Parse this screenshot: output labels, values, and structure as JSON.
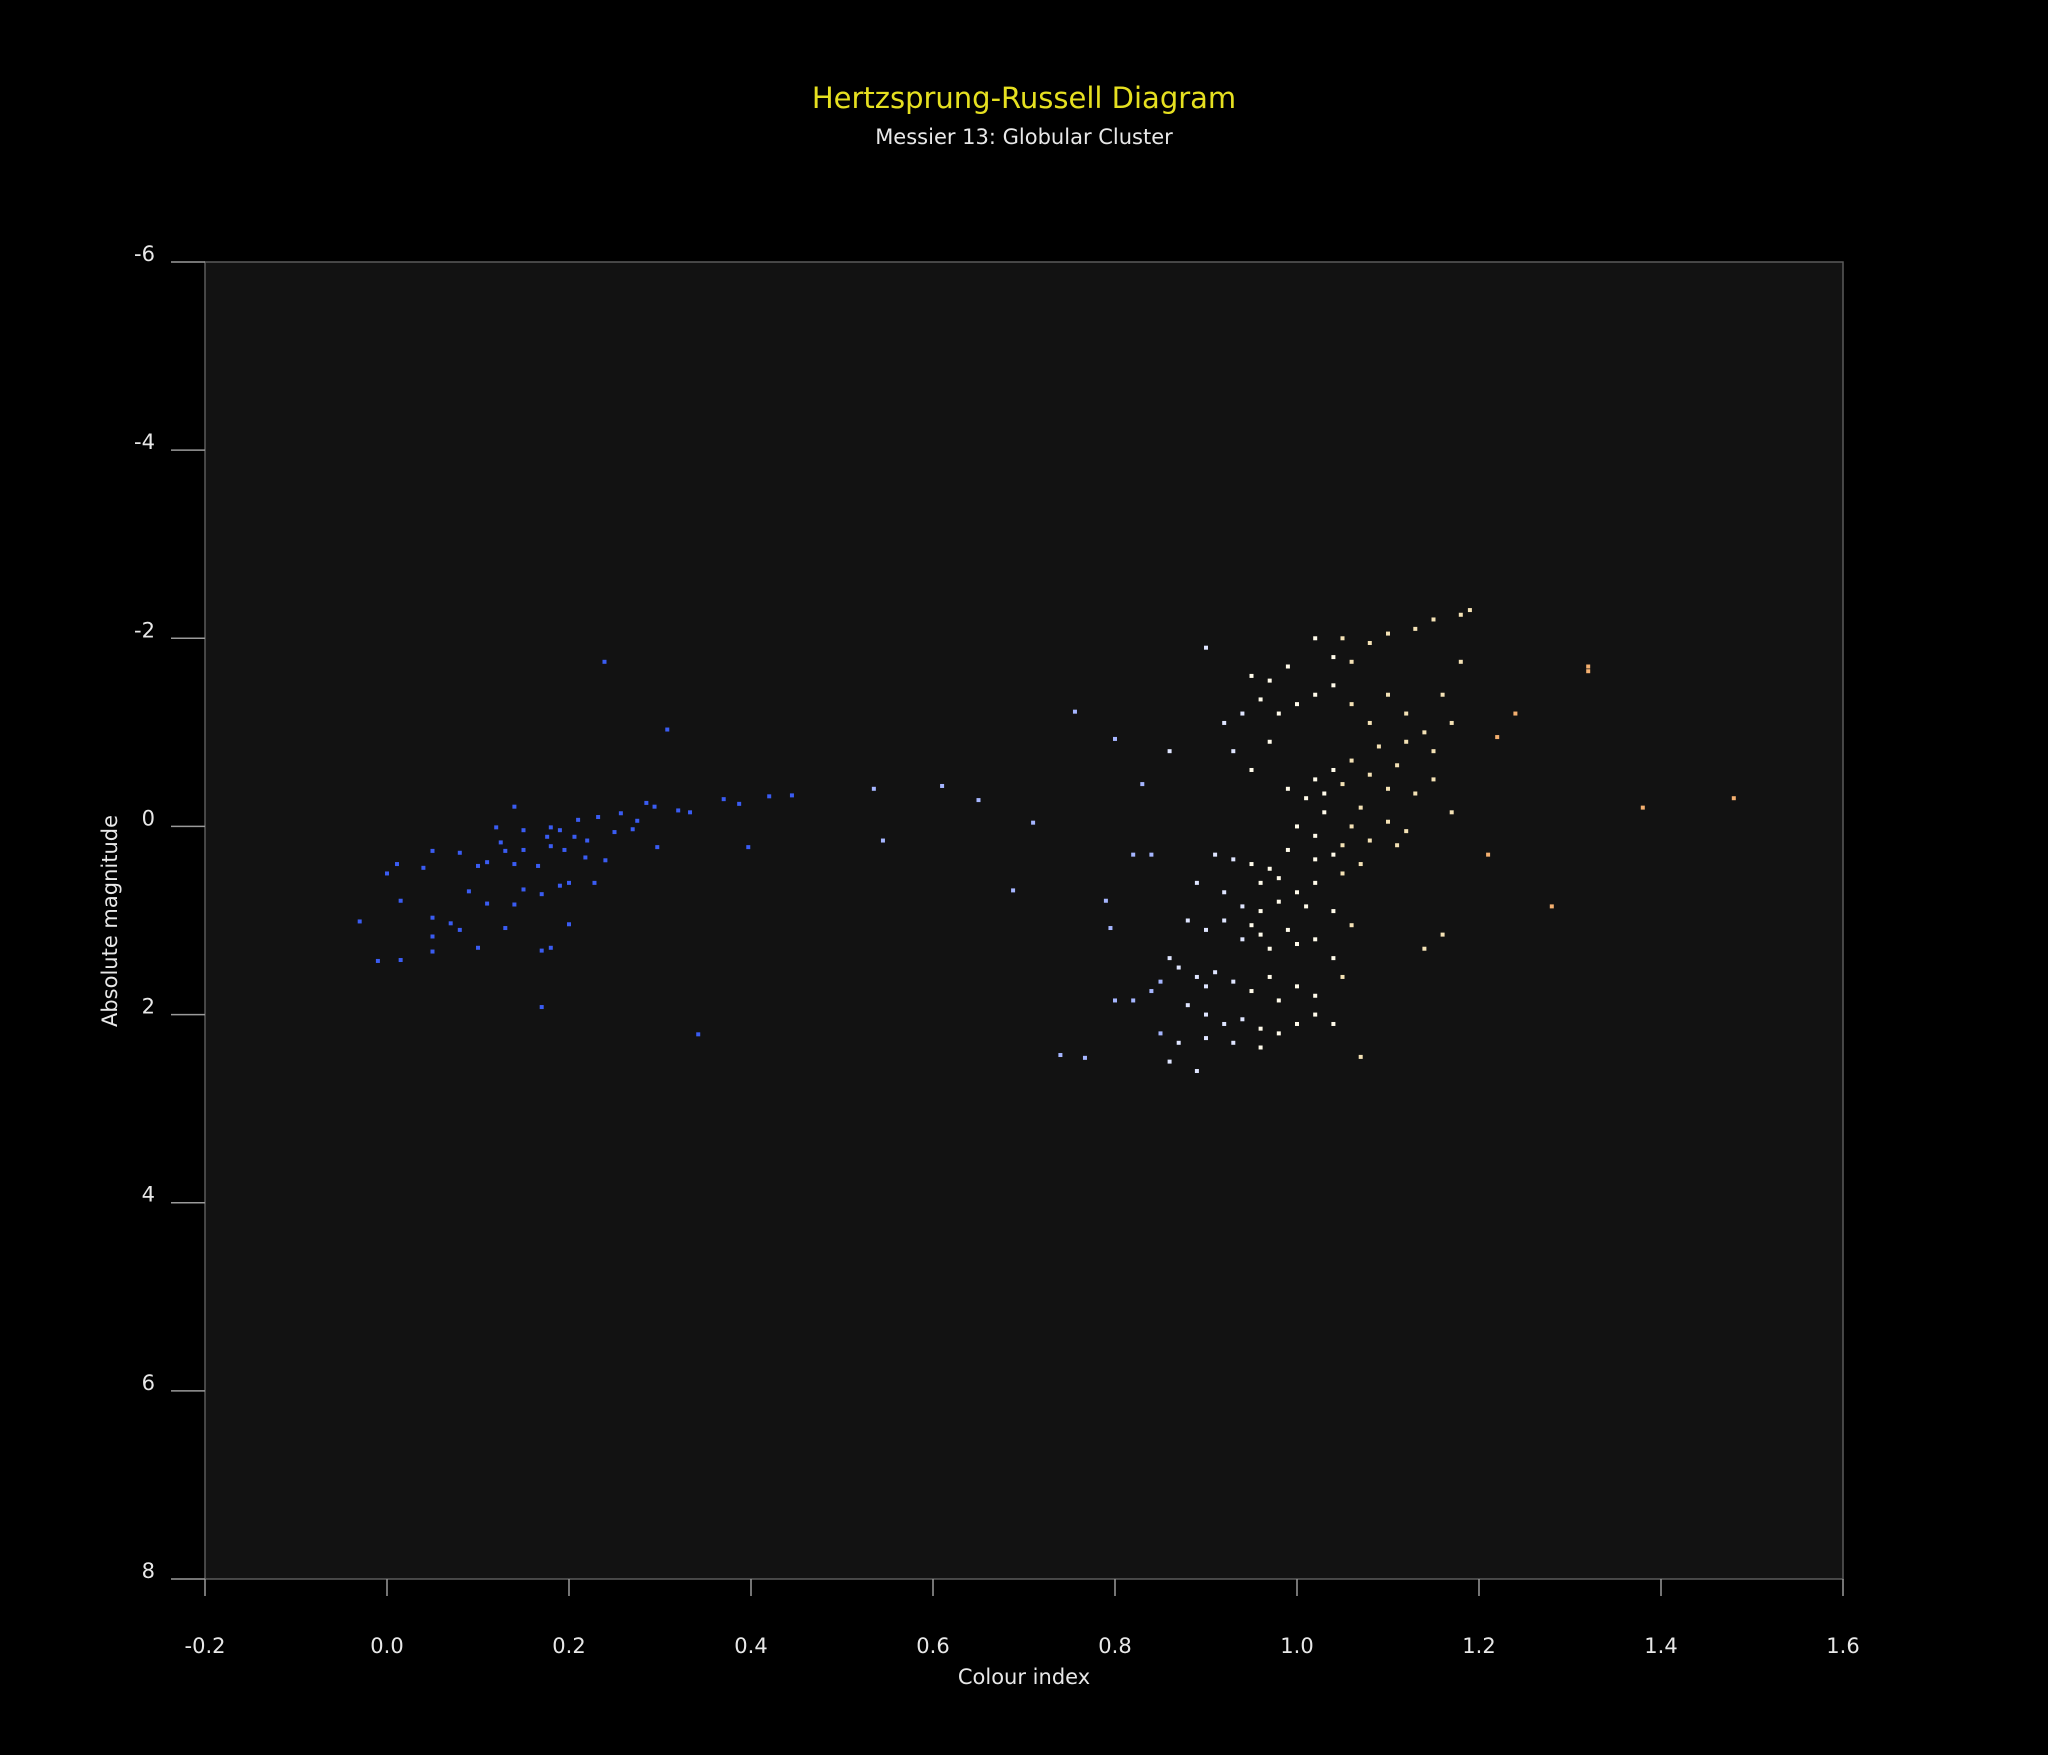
{
  "chart_data": {
    "type": "scatter",
    "title": "Hertzsprung-Russell Diagram",
    "subtitle": "Messier 13: Globular Cluster",
    "x_label": "Colour index",
    "y_label": "Absolute magnitude",
    "xlim": [
      -0.2,
      1.6
    ],
    "xticks": [
      -0.2,
      {
        "value": 0,
        "label": "0.0"
      },
      0.2,
      0.4,
      0.6,
      0.8,
      {
        "value": 1,
        "label": "1.0"
      },
      1.2,
      1.4,
      1.6
    ],
    "ylim": [
      -6,
      8
    ],
    "yticks": [
      -6,
      -4,
      -2,
      0,
      2,
      4,
      6,
      8
    ],
    "y_inverted": true,
    "grid": false,
    "series": [
      {
        "color": "#3a5cf2",
        "x": [
          0.239,
          0.308,
          -0.03,
          -0.01,
          0.015,
          0.0,
          0.011,
          0.015,
          0.04,
          0.05,
          0.05,
          0.05,
          0.05,
          0.07,
          0.08,
          0.08,
          0.09,
          0.1,
          0.1,
          0.11,
          0.11,
          0.12,
          0.125,
          0.13,
          0.13,
          0.14,
          0.14,
          0.14,
          0.15,
          0.15,
          0.15,
          0.166,
          0.17,
          0.17,
          0.17,
          0.176,
          0.18,
          0.18,
          0.18,
          0.19,
          0.19,
          0.195,
          0.2,
          0.2,
          0.206,
          0.21,
          0.218,
          0.22,
          0.228,
          0.232,
          0.24,
          0.25,
          0.257,
          0.27,
          0.275,
          0.285,
          0.294,
          0.297,
          0.32,
          0.333,
          0.342,
          0.37,
          0.387,
          0.397,
          0.42,
          0.445
        ],
        "values": [
          -1.75,
          -1.03,
          1.01,
          1.43,
          1.42,
          0.5,
          0.4,
          0.79,
          0.44,
          0.26,
          0.97,
          1.17,
          1.33,
          1.03,
          1.1,
          0.28,
          0.69,
          0.42,
          1.29,
          0.82,
          0.38,
          0.01,
          0.17,
          1.08,
          0.26,
          0.4,
          -0.21,
          0.83,
          0.25,
          0.04,
          0.67,
          0.42,
          1.32,
          0.72,
          1.92,
          0.11,
          0.01,
          0.21,
          1.29,
          0.63,
          0.04,
          0.25,
          0.6,
          1.04,
          0.11,
          -0.07,
          0.33,
          0.15,
          0.6,
          -0.1,
          0.36,
          0.06,
          -0.14,
          0.03,
          -0.06,
          -0.25,
          -0.21,
          0.22,
          -0.17,
          -0.15,
          2.21,
          -0.29,
          -0.24,
          0.22,
          -0.32,
          -0.33
        ]
      },
      {
        "color": "#a6b6ff",
        "x": [
          0.535,
          0.545,
          0.61,
          0.65,
          0.688,
          0.71,
          0.756,
          0.79,
          0.795,
          0.8,
          0.74,
          0.767,
          0.83,
          0.82,
          0.84,
          0.85,
          0.84,
          0.8,
          0.82,
          0.85
        ],
        "values": [
          -0.4,
          0.15,
          -0.43,
          -0.28,
          0.68,
          -0.04,
          -1.22,
          0.79,
          1.08,
          -0.93,
          2.43,
          2.46,
          -0.45,
          0.3,
          0.3,
          1.65,
          1.75,
          1.85,
          1.85,
          2.2
        ]
      },
      {
        "color": "#dfe5ff",
        "x": [
          0.9,
          0.92,
          0.94,
          0.93,
          0.86,
          0.93,
          0.91,
          0.89,
          0.92,
          0.94,
          0.88,
          0.9,
          0.92,
          0.94,
          0.86,
          0.87,
          0.89,
          0.9,
          0.91,
          0.93,
          0.88,
          0.9,
          0.92,
          0.94,
          0.87,
          0.9,
          0.93,
          0.86,
          0.89
        ],
        "values": [
          -1.9,
          -1.1,
          -1.2,
          -0.8,
          -0.8,
          0.35,
          0.3,
          0.6,
          0.7,
          0.85,
          1.0,
          1.1,
          1.0,
          1.2,
          1.4,
          1.5,
          1.6,
          1.7,
          1.55,
          1.65,
          1.9,
          2.0,
          2.1,
          2.05,
          2.3,
          2.25,
          2.3,
          2.5,
          2.6
        ]
      },
      {
        "color": "#fffbea",
        "x": [
          0.95,
          0.97,
          0.99,
          1.02,
          1.04,
          0.96,
          0.98,
          1.0,
          1.02,
          1.04,
          0.95,
          0.97,
          0.99,
          1.01,
          1.02,
          1.03,
          1.04,
          1.0,
          1.02,
          1.03,
          1.04,
          1.02,
          0.99,
          0.97,
          0.95,
          0.96,
          0.98,
          1.0,
          1.02,
          0.96,
          0.98,
          1.01,
          1.04,
          0.95,
          0.96,
          0.97,
          0.99,
          1.0,
          1.02,
          1.04,
          0.95,
          0.97,
          0.98,
          1.0,
          1.02,
          0.96,
          0.98,
          1.0,
          1.02,
          1.04,
          0.96
        ],
        "values": [
          -1.6,
          -1.55,
          -1.7,
          -2.0,
          -1.8,
          -1.35,
          -1.2,
          -1.3,
          -1.4,
          -1.5,
          -0.6,
          -0.9,
          -0.4,
          -0.3,
          -0.5,
          -0.35,
          -0.6,
          0.0,
          0.1,
          -0.15,
          0.3,
          0.35,
          0.25,
          0.45,
          0.4,
          0.6,
          0.55,
          0.7,
          0.6,
          0.9,
          0.8,
          0.85,
          0.9,
          1.05,
          1.15,
          1.3,
          1.1,
          1.25,
          1.2,
          1.4,
          1.75,
          1.6,
          1.85,
          1.7,
          1.8,
          2.15,
          2.2,
          2.1,
          2.0,
          2.1,
          2.35
        ]
      },
      {
        "color": "#f4e2b5",
        "x": [
          1.05,
          1.06,
          1.08,
          1.1,
          1.13,
          1.15,
          1.18,
          1.19,
          1.18,
          1.06,
          1.08,
          1.1,
          1.12,
          1.14,
          1.16,
          1.17,
          1.15,
          1.12,
          1.05,
          1.06,
          1.07,
          1.08,
          1.09,
          1.1,
          1.11,
          1.13,
          1.15,
          1.17,
          1.05,
          1.06,
          1.08,
          1.1,
          1.12,
          1.11,
          1.05,
          1.07,
          1.06,
          1.05,
          1.07,
          1.14,
          1.16
        ],
        "values": [
          -2.0,
          -1.75,
          -1.95,
          -2.05,
          -2.1,
          -2.2,
          -2.25,
          -2.3,
          -1.75,
          -1.3,
          -1.1,
          -1.4,
          -1.2,
          -1.0,
          -1.4,
          -1.1,
          -0.8,
          -0.9,
          -0.45,
          -0.7,
          -0.2,
          -0.55,
          -0.85,
          -0.4,
          -0.65,
          -0.35,
          -0.5,
          -0.15,
          0.2,
          0.0,
          0.15,
          -0.05,
          0.05,
          0.2,
          0.5,
          0.4,
          1.05,
          1.6,
          2.45,
          1.3,
          1.15
        ]
      },
      {
        "color": "#f4b070",
        "x": [
          1.22,
          1.24,
          1.21,
          1.28,
          1.32,
          1.32,
          1.38,
          1.48
        ],
        "values": [
          -0.95,
          -1.2,
          0.3,
          0.85,
          -1.7,
          -1.65,
          -0.2,
          -0.3
        ]
      }
    ]
  }
}
